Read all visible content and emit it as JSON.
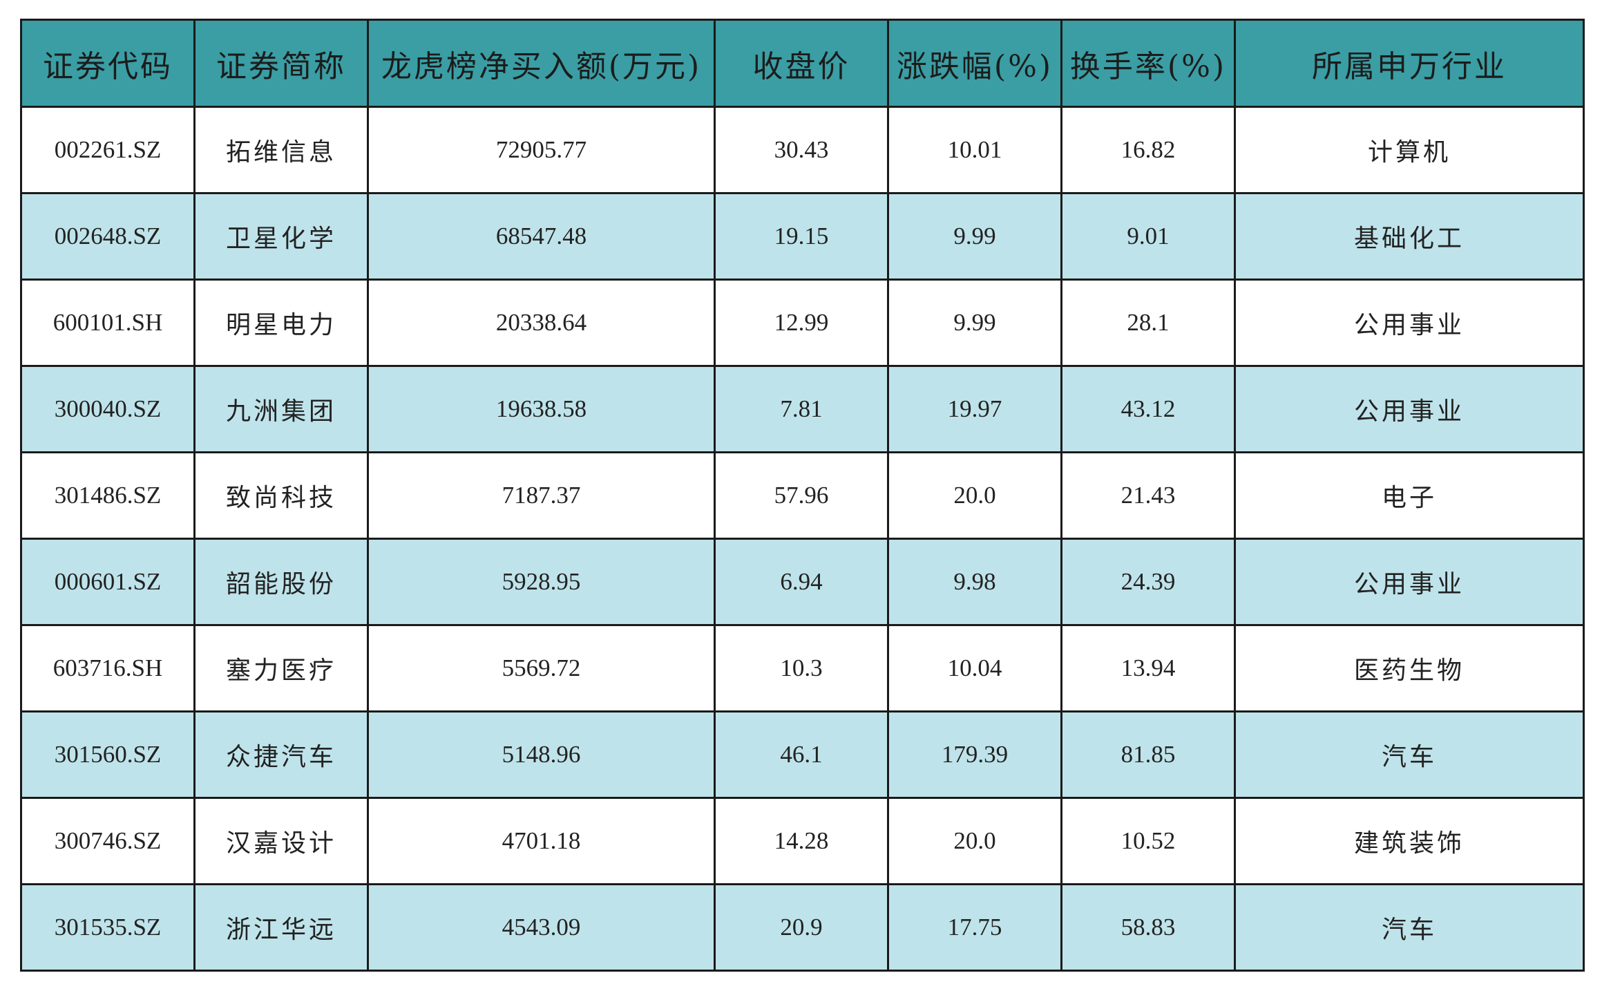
{
  "table": {
    "headers": [
      "证券代码",
      "证券简称",
      "龙虎榜净买入额(万元)",
      "收盘价",
      "涨跌幅(%)",
      "换手率(%)",
      "所属申万行业"
    ],
    "rows": [
      [
        "002261.SZ",
        "拓维信息",
        "72905.77",
        "30.43",
        "10.01",
        "16.82",
        "计算机"
      ],
      [
        "002648.SZ",
        "卫星化学",
        "68547.48",
        "19.15",
        "9.99",
        "9.01",
        "基础化工"
      ],
      [
        "600101.SH",
        "明星电力",
        "20338.64",
        "12.99",
        "9.99",
        "28.1",
        "公用事业"
      ],
      [
        "300040.SZ",
        "九洲集团",
        "19638.58",
        "7.81",
        "19.97",
        "43.12",
        "公用事业"
      ],
      [
        "301486.SZ",
        "致尚科技",
        "7187.37",
        "57.96",
        "20.0",
        "21.43",
        "电子"
      ],
      [
        "000601.SZ",
        "韶能股份",
        "5928.95",
        "6.94",
        "9.98",
        "24.39",
        "公用事业"
      ],
      [
        "603716.SH",
        "塞力医疗",
        "5569.72",
        "10.3",
        "10.04",
        "13.94",
        "医药生物"
      ],
      [
        "301560.SZ",
        "众捷汽车",
        "5148.96",
        "46.1",
        "179.39",
        "81.85",
        "汽车"
      ],
      [
        "300746.SZ",
        "汉嘉设计",
        "4701.18",
        "14.28",
        "20.0",
        "10.52",
        "建筑装饰"
      ],
      [
        "301535.SZ",
        "浙江华远",
        "4543.09",
        "20.9",
        "17.75",
        "58.83",
        "汽车"
      ]
    ]
  },
  "colors": {
    "header_bg": "#3a9ea4",
    "row_alt_bg": "#bfe3ea",
    "row_bg": "#ffffff",
    "border": "#1a1a1a"
  }
}
